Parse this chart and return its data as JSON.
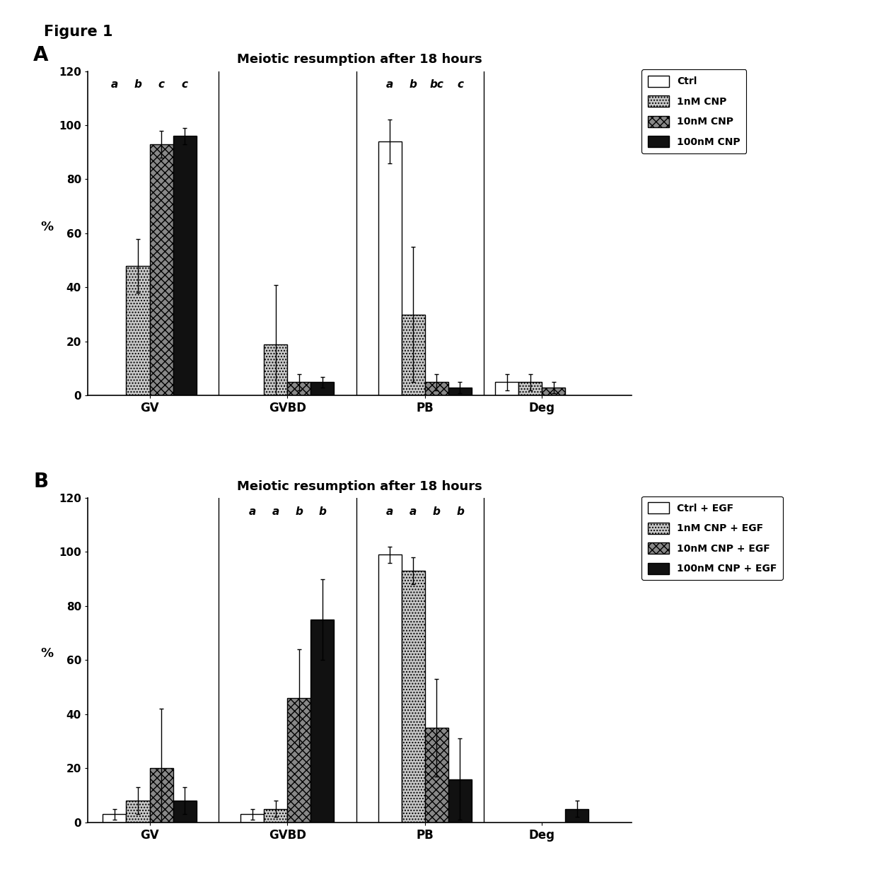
{
  "figure_label": "Figure 1",
  "panel_A": {
    "title": "Meiotic resumption after 18 hours",
    "panel_label": "A",
    "categories": [
      "GV",
      "GVBD",
      "PB",
      "Deg"
    ],
    "series": [
      {
        "label": "Ctrl",
        "values": [
          0,
          0,
          94,
          5
        ],
        "errors": [
          0,
          0,
          8,
          3
        ]
      },
      {
        "label": "1nM CNP",
        "values": [
          48,
          19,
          30,
          5
        ],
        "errors": [
          10,
          22,
          25,
          3
        ]
      },
      {
        "label": "10nM CNP",
        "values": [
          93,
          5,
          5,
          3
        ],
        "errors": [
          5,
          3,
          3,
          2
        ]
      },
      {
        "label": "100nM CNP",
        "values": [
          96,
          5,
          3,
          0
        ],
        "errors": [
          3,
          2,
          2,
          0
        ]
      }
    ],
    "sig_labels_GV": [
      "a",
      "b",
      "c",
      "c"
    ],
    "sig_labels_PB": [
      "a",
      "b",
      "bc",
      "c"
    ],
    "ylim": [
      0,
      120
    ],
    "yticks": [
      0,
      20,
      40,
      60,
      80,
      100,
      120
    ],
    "ylabel": "%",
    "legend_labels": [
      "Ctrl",
      "1nM CNP",
      "10nM CNP",
      "100nM CNP"
    ]
  },
  "panel_B": {
    "title": "Meiotic resumption after 18 hours",
    "panel_label": "B",
    "categories": [
      "GV",
      "GVBD",
      "PB",
      "Deg"
    ],
    "series": [
      {
        "label": "Ctrl + EGF",
        "values": [
          3,
          3,
          99,
          0
        ],
        "errors": [
          2,
          2,
          3,
          0
        ]
      },
      {
        "label": "1nM CNP + EGF",
        "values": [
          8,
          5,
          93,
          0
        ],
        "errors": [
          5,
          3,
          5,
          0
        ]
      },
      {
        "label": "10nM CNP + EGF",
        "values": [
          20,
          46,
          35,
          0
        ],
        "errors": [
          22,
          18,
          18,
          0
        ]
      },
      {
        "label": "100nM CNP + EGF",
        "values": [
          8,
          75,
          16,
          5
        ],
        "errors": [
          5,
          15,
          15,
          3
        ]
      }
    ],
    "sig_labels_GVBD": [
      "a",
      "a",
      "b",
      "b"
    ],
    "sig_labels_PB": [
      "a",
      "a",
      "b",
      "b"
    ],
    "ylim": [
      0,
      120
    ],
    "yticks": [
      0,
      20,
      40,
      60,
      80,
      100,
      120
    ],
    "ylabel": "%",
    "legend_labels": [
      "Ctrl + EGF",
      "1nM CNP + EGF",
      "10nM CNP + EGF",
      "100nM CNP + EGF"
    ]
  },
  "bar_width": 0.17,
  "group_centers": [
    0.35,
    1.35,
    2.35,
    3.2
  ],
  "background_color": "#ffffff"
}
